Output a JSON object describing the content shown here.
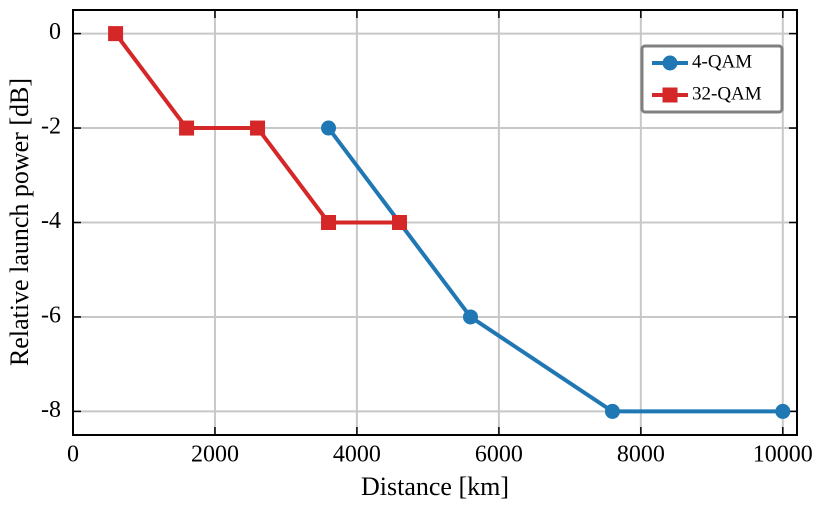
{
  "chart_data": {
    "type": "line",
    "xlabel": "Distance [km]",
    "ylabel": "Relative launch power [dB]",
    "xlim": [
      0,
      10200
    ],
    "xticks": [
      0,
      2000,
      4000,
      6000,
      8000,
      10000
    ],
    "ylim": [
      -8.5,
      0.5
    ],
    "yticks": [
      0,
      -2,
      -4,
      -6,
      -8
    ],
    "grid": true,
    "legend": "upper right",
    "series": [
      {
        "name": "4-QAM",
        "color": "#1f77b4",
        "marker": "circle",
        "x": [
          3600,
          4600,
          5600,
          7600,
          10000
        ],
        "values": [
          -2,
          -4,
          -6,
          -8,
          -8
        ]
      },
      {
        "name": "32-QAM",
        "color": "#d62728",
        "marker": "square",
        "x": [
          600,
          1600,
          2600,
          3600,
          4600
        ],
        "values": [
          0,
          -2,
          -2,
          -4,
          -4
        ]
      }
    ]
  }
}
